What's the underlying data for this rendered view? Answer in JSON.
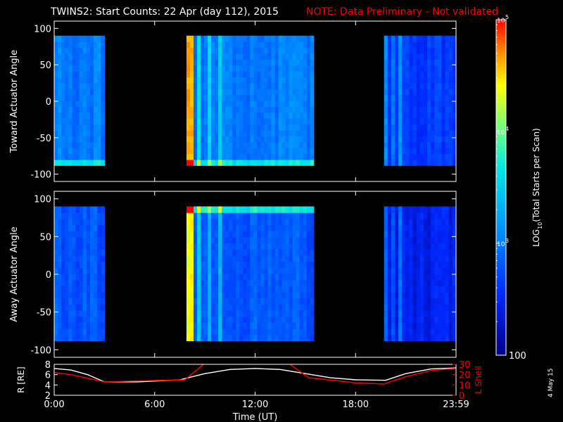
{
  "header": {
    "title": "TWINS2: Start Counts: 22 Apr (day 112), 2015",
    "note": "NOTE: Data Preliminary - Not validated"
  },
  "footer": {
    "date_stamp": "4 May 15"
  },
  "colors": {
    "background": "#000000",
    "foreground": "#ffffff",
    "note": "#ff0000",
    "lshell": "#ff0000",
    "radius": "#ffffff"
  },
  "chart_data": [
    {
      "type": "heatmap",
      "title": "TWINS2: Start Counts: 22 Apr (day 112), 2015",
      "ylabel": "Toward Actuator Angle",
      "ylim": [
        -110,
        110
      ],
      "yticks": [
        -100,
        -50,
        0,
        50,
        100
      ],
      "xlim": [
        0,
        24
      ],
      "data_intervals_ut": [
        [
          0.0,
          3.0
        ],
        [
          7.9,
          15.5
        ],
        [
          19.7,
          24.0
        ]
      ],
      "angle_range": [
        -88,
        90
      ],
      "colorscale": "rainbow, log10 counts from 100 to 1e5",
      "typical_log_value": 3.0
    },
    {
      "type": "heatmap",
      "ylabel": "Away Actuator Angle",
      "ylim": [
        -110,
        110
      ],
      "yticks": [
        -100,
        -50,
        0,
        50,
        100
      ],
      "xlim": [
        0,
        24
      ],
      "data_intervals_ut": [
        [
          0.0,
          3.0
        ],
        [
          7.9,
          15.5
        ],
        [
          19.7,
          24.0
        ]
      ],
      "angle_range": [
        -88,
        90
      ],
      "colorscale": "rainbow, log10 counts from 100 to 1e5",
      "typical_log_value": 2.8
    },
    {
      "type": "line",
      "xlabel": "Time (UT)",
      "xlim": [
        0,
        24
      ],
      "xticks": [
        0,
        6,
        12,
        18,
        24
      ],
      "xtick_labels": [
        "0:00",
        "6:00",
        "12:00",
        "18:00",
        "23:59"
      ],
      "ylabel_left": "R [RE]",
      "ylim_left": [
        2,
        8
      ],
      "yticks_left": [
        2,
        4,
        6,
        8
      ],
      "ylabel_right": "L Shell",
      "ylim_right": [
        0,
        30
      ],
      "yticks_right": [
        0,
        10,
        20,
        30
      ],
      "series": [
        {
          "name": "R [RE]",
          "axis": "left",
          "x": [
            0,
            1,
            2,
            3,
            5,
            7.5,
            9,
            10.5,
            12,
            13.5,
            15,
            16.5,
            18,
            19.8,
            21,
            22.5,
            24
          ],
          "y": [
            7.2,
            6.9,
            6.0,
            4.6,
            4.6,
            5.0,
            6.2,
            7.0,
            7.2,
            7.0,
            6.2,
            5.4,
            5.0,
            4.9,
            6.2,
            7.1,
            7.3
          ]
        },
        {
          "name": "L Shell",
          "axis": "right",
          "x": [
            0,
            1,
            3,
            5,
            7.8,
            9.0,
            14.0,
            15.2,
            17,
            18,
            19.7,
            21,
            22.5,
            24
          ],
          "y": [
            22,
            20,
            13,
            14,
            15,
            31,
            31,
            17,
            14,
            12,
            11,
            18,
            24,
            26
          ]
        }
      ]
    },
    {
      "type": "colorbar",
      "label": "LOG10(Total Starts per Scan)",
      "label_main": "LOG",
      "label_sub": "10",
      "label_rest": "(Total Starts per Scan)",
      "tick_labels": [
        "100",
        "10",
        "3",
        "10",
        "4",
        "10",
        "5"
      ],
      "ticks": [
        {
          "value": 2,
          "base": "100",
          "exp": ""
        },
        {
          "value": 3,
          "base": "10",
          "exp": "3"
        },
        {
          "value": 4,
          "base": "10",
          "exp": "4"
        },
        {
          "value": 5,
          "base": "10",
          "exp": "5"
        }
      ],
      "range": [
        2,
        5
      ]
    }
  ]
}
